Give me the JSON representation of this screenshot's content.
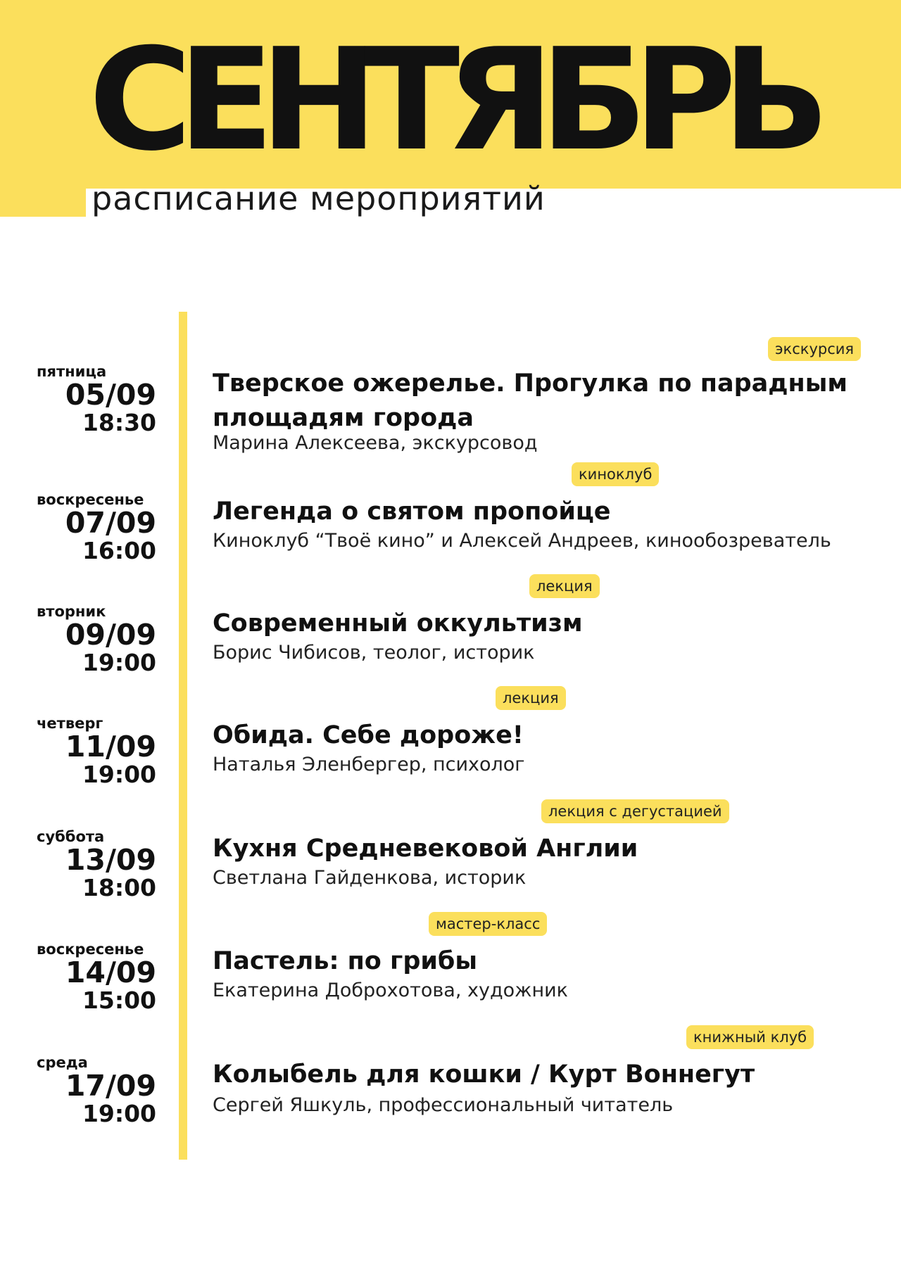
{
  "header": {
    "title": "СЕНТЯБРЬ",
    "subtitle": "расписание мероприятий"
  },
  "colors": {
    "accent": "#fbdf5c",
    "text": "#111111",
    "background": "#ffffff"
  },
  "events": [
    {
      "day": "пятница",
      "date": "05/09",
      "time": "18:30",
      "tag": "экскурсия",
      "title": "Тверское ожерелье. Прогулка по парадным площадям города",
      "speaker": "Марина Алексеева, экскурсовод"
    },
    {
      "day": "воскресенье",
      "date": "07/09",
      "time": "16:00",
      "tag": "киноклуб",
      "title": "Легенда о святом пропойце",
      "speaker": "Киноклуб “Твоё кино” и Алексей Андреев, кинообозреватель"
    },
    {
      "day": "вторник",
      "date": "09/09",
      "time": "19:00",
      "tag": "лекция",
      "title": "Современный оккультизм",
      "speaker": "Борис Чибисов, теолог, историк"
    },
    {
      "day": "четверг",
      "date": "11/09",
      "time": "19:00",
      "tag": "лекция",
      "title": "Обида. Себе дороже!",
      "speaker": "Наталья Эленбергер, психолог"
    },
    {
      "day": "суббота",
      "date": "13/09",
      "time": "18:00",
      "tag": "лекция с дегустацией",
      "title": "Кухня Средневековой Англии",
      "speaker": "Светлана Гайденкова, историк"
    },
    {
      "day": "воскресенье",
      "date": "14/09",
      "time": "15:00",
      "tag": "мастер-класс",
      "title": "Пастель: по грибы",
      "speaker": "Екатерина Доброхотова, художник"
    },
    {
      "day": "среда",
      "date": "17/09",
      "time": "19:00",
      "tag": "книжный клуб",
      "title": "Колыбель для кошки / Курт Воннегут",
      "speaker": "Сергей Яшкуль, профессиональный читатель"
    }
  ]
}
